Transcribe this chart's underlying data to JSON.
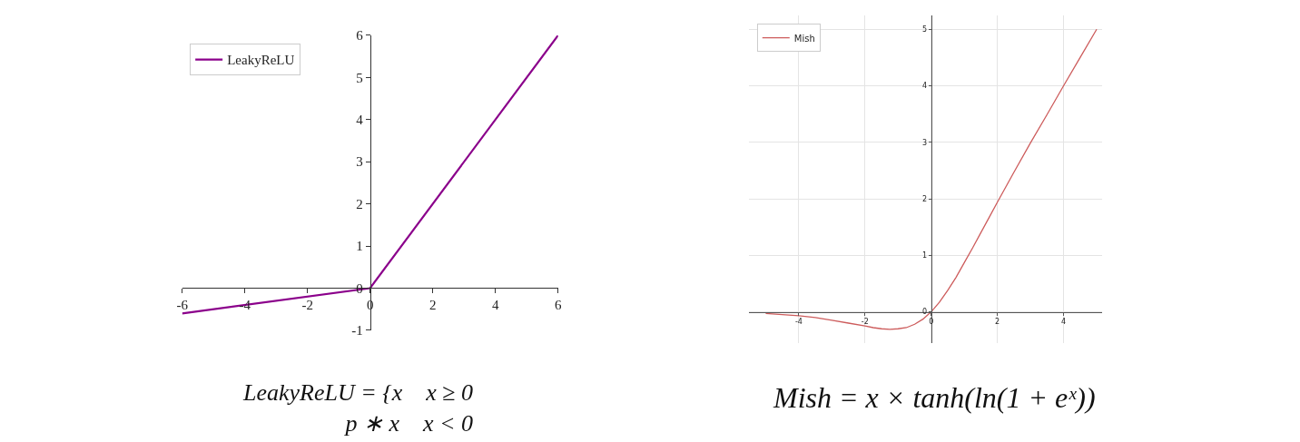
{
  "chart_data": [
    {
      "type": "line",
      "series": [
        {
          "name": "LeakyReLU",
          "color": "#8b008b",
          "x": [
            -6,
            0,
            6
          ],
          "values": [
            -0.6,
            0,
            6
          ]
        }
      ],
      "xlim": [
        -6,
        6
      ],
      "ylim": [
        -1,
        6
      ],
      "xticks": [
        -6,
        -4,
        -2,
        0,
        2,
        4,
        6
      ],
      "yticks": [
        -1,
        0,
        1,
        2,
        3,
        4,
        5,
        6
      ],
      "grid": false,
      "legend": "top left",
      "annotations": [
        "LeakyReLU = {x    x ≥ 0\np ∗ x    x < 0"
      ]
    },
    {
      "type": "line",
      "series": [
        {
          "name": "Mish",
          "color": "#cd5c5c",
          "x": [
            -5,
            -4.5,
            -4,
            -3.5,
            -3,
            -2.5,
            -2,
            -1.75,
            -1.5,
            -1.25,
            -1,
            -0.75,
            -0.5,
            -0.25,
            0,
            0.25,
            0.5,
            0.75,
            1,
            1.25,
            1.5,
            1.75,
            2,
            2.5,
            3,
            3.5,
            4,
            4.5,
            5
          ],
          "values": [
            -0.03,
            -0.05,
            -0.07,
            -0.1,
            -0.15,
            -0.2,
            -0.25,
            -0.28,
            -0.3,
            -0.31,
            -0.3,
            -0.28,
            -0.22,
            -0.13,
            0,
            0.17,
            0.38,
            0.61,
            0.87,
            1.13,
            1.4,
            1.67,
            1.94,
            2.47,
            2.99,
            3.49,
            4.0,
            4.5,
            5.0
          ]
        }
      ],
      "xlim": [
        -5.5,
        5.15
      ],
      "ylim": [
        -0.56,
        5.25
      ],
      "xticks": [
        -4,
        -2,
        0,
        2,
        4
      ],
      "yticks": [
        0,
        1,
        2,
        3,
        4,
        5
      ],
      "grid": true,
      "legend": "top left",
      "annotations": [
        "Mish = x × tanh(ln(1 + eˣ))"
      ]
    }
  ]
}
